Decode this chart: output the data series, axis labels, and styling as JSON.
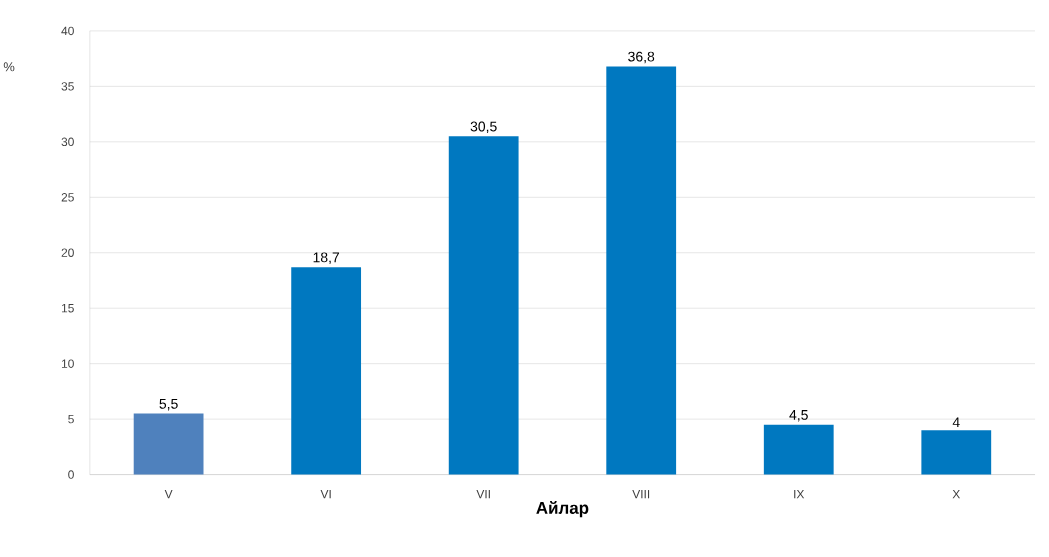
{
  "chart_data": {
    "type": "bar",
    "ylabel": "%",
    "xlabel": "Айлар",
    "categories": [
      "V",
      "VI",
      "VII",
      "VIII",
      "IX",
      "X"
    ],
    "values": [
      5.5,
      18.7,
      30.5,
      36.8,
      4.5,
      4
    ],
    "value_labels": [
      "5,5",
      "18,7",
      "30,5",
      "36,8",
      "4,5",
      "4"
    ],
    "colors": [
      "#4f81bd",
      "#0078c0",
      "#0078c0",
      "#0078c0",
      "#0078c0",
      "#0078c0"
    ],
    "ylim": [
      0,
      40
    ],
    "yticks": [
      0,
      5,
      10,
      15,
      20,
      25,
      30,
      35,
      40
    ],
    "grid": "y"
  }
}
